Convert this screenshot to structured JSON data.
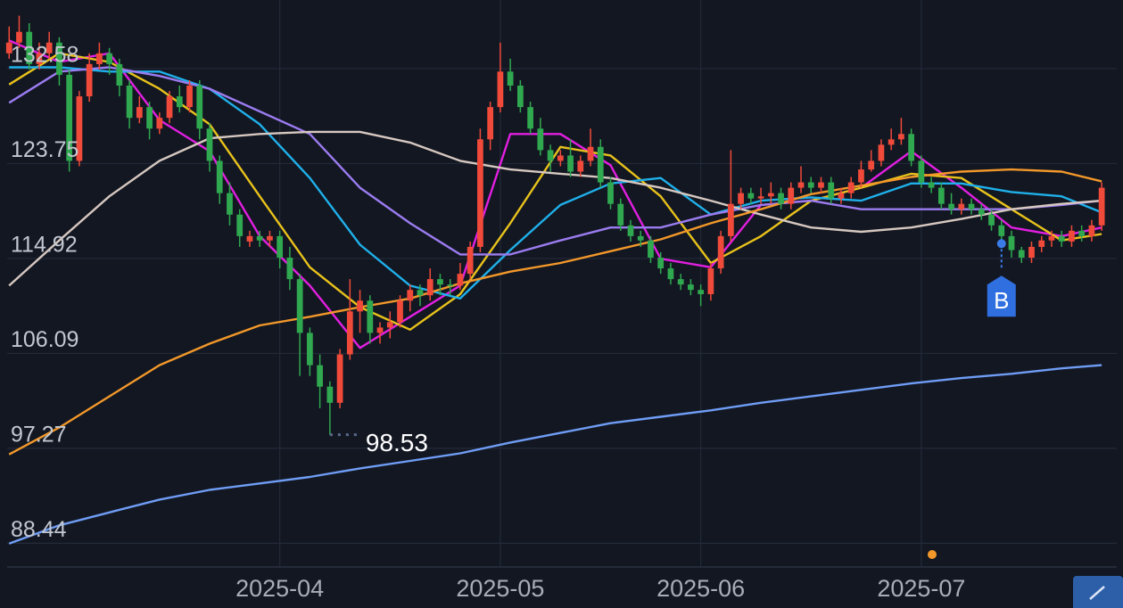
{
  "chart_data": {
    "type": "candlestick",
    "up_color": "#f04a3a",
    "down_color": "#2fa84f",
    "ylim": [
      86.23,
      138.96
    ],
    "yticks": [
      88.44,
      97.27,
      106.09,
      114.92,
      123.75,
      132.58
    ],
    "xlim": [
      -0.2,
      110.5
    ],
    "xticks": [
      {
        "value": 27,
        "label": "2025-04"
      },
      {
        "value": 49,
        "label": "2025-05"
      },
      {
        "value": 69,
        "label": "2025-06"
      },
      {
        "value": 91,
        "label": "2025-07"
      }
    ],
    "grid": true,
    "min_low": 98.53,
    "ohlc": [
      [
        134,
        136.5,
        133.5,
        135
      ],
      [
        135,
        137.5,
        134.5,
        136
      ],
      [
        136,
        136.8,
        132.5,
        133
      ],
      [
        133,
        135,
        132.5,
        134
      ],
      [
        134,
        136,
        133.5,
        135
      ],
      [
        135,
        135.5,
        131,
        132
      ],
      [
        132,
        132.5,
        123,
        124
      ],
      [
        124,
        130.5,
        123.5,
        130
      ],
      [
        130,
        134,
        129.5,
        133
      ],
      [
        133,
        135,
        132.5,
        134
      ],
      [
        134,
        134.5,
        132,
        133
      ],
      [
        133,
        133.5,
        130,
        131
      ],
      [
        131,
        131.5,
        127,
        128
      ],
      [
        128,
        130,
        127.5,
        129
      ],
      [
        129,
        129.5,
        126,
        127
      ],
      [
        127,
        128.5,
        126.5,
        128
      ],
      [
        128,
        130.5,
        127.5,
        130
      ],
      [
        130,
        131,
        128.5,
        129
      ],
      [
        129,
        131.5,
        128.5,
        131
      ],
      [
        131,
        131.5,
        126,
        127
      ],
      [
        127,
        127.5,
        123,
        124
      ],
      [
        124,
        124.5,
        120,
        121
      ],
      [
        121,
        122,
        118,
        119
      ],
      [
        119,
        119.5,
        116,
        117
      ],
      [
        116.5,
        117.5,
        116,
        117
      ],
      [
        117,
        117.5,
        116,
        116.6
      ],
      [
        116.6,
        117.5,
        116,
        117
      ],
      [
        117,
        117.5,
        114,
        115
      ],
      [
        115,
        116,
        112,
        113
      ],
      [
        113,
        113.5,
        104,
        108
      ],
      [
        108,
        108.5,
        104,
        105
      ],
      [
        105,
        106,
        101,
        103
      ],
      [
        103,
        103.5,
        98.53,
        101.5
      ],
      [
        101.5,
        106.5,
        101,
        106
      ],
      [
        106,
        113,
        105.5,
        110
      ],
      [
        110,
        112,
        108,
        111
      ],
      [
        111,
        111.5,
        107,
        108
      ],
      [
        108,
        109,
        107,
        108.5
      ],
      [
        108.5,
        110,
        107.5,
        109
      ],
      [
        109,
        111.5,
        108.5,
        111
      ],
      [
        111,
        112.5,
        110,
        112
      ],
      [
        112,
        112.5,
        110.5,
        111.5
      ],
      [
        111.5,
        114,
        111,
        113
      ],
      [
        113,
        113.5,
        111.5,
        112.5
      ],
      [
        112.5,
        113,
        111.5,
        112.4
      ],
      [
        112.4,
        114.5,
        112,
        113.5
      ],
      [
        113.5,
        116.5,
        113,
        116
      ],
      [
        116,
        127,
        115.5,
        126
      ],
      [
        126,
        129.5,
        125,
        129
      ],
      [
        129,
        135,
        128.5,
        132.3
      ],
      [
        132.3,
        133.5,
        130.5,
        131
      ],
      [
        131,
        131.5,
        128.5,
        129
      ],
      [
        129,
        129.5,
        126.5,
        127
      ],
      [
        127,
        128,
        124.5,
        125
      ],
      [
        125,
        125.5,
        123,
        124
      ],
      [
        124,
        125,
        123.5,
        124.5
      ],
      [
        124.5,
        126,
        122.5,
        123
      ],
      [
        123,
        124.5,
        122.5,
        124
      ],
      [
        124,
        127,
        123.5,
        125.3
      ],
      [
        125.3,
        126,
        121.5,
        122
      ],
      [
        122,
        122.5,
        119.5,
        120
      ],
      [
        120,
        120.5,
        117.5,
        118
      ],
      [
        118,
        118.5,
        116.5,
        117
      ],
      [
        117,
        117.5,
        116,
        116.6
      ],
      [
        116.6,
        117,
        114.5,
        115
      ],
      [
        115,
        115.5,
        113.5,
        114
      ],
      [
        114,
        114.5,
        112.5,
        113
      ],
      [
        113,
        113.5,
        112,
        112.5
      ],
      [
        112.5,
        113,
        111.5,
        112
      ],
      [
        112,
        112.5,
        110.5,
        111.6
      ],
      [
        111.6,
        114.5,
        111,
        114
      ],
      [
        114,
        117.5,
        113.5,
        117
      ],
      [
        117,
        125,
        116.5,
        120
      ],
      [
        120,
        121.5,
        119.5,
        121
      ],
      [
        121,
        121.5,
        120,
        120.5
      ],
      [
        120.5,
        121.5,
        120,
        120.7
      ],
      [
        120.7,
        122,
        120,
        121
      ],
      [
        121,
        121.5,
        119.5,
        120
      ],
      [
        120,
        122,
        119.5,
        121.5
      ],
      [
        121.5,
        123.5,
        121,
        122
      ],
      [
        122,
        122.5,
        121,
        121.5
      ],
      [
        121.5,
        122.5,
        121,
        122
      ],
      [
        122,
        122.5,
        120,
        120.5
      ],
      [
        120.5,
        121.5,
        120,
        121
      ],
      [
        121,
        122.5,
        120.5,
        122
      ],
      [
        122,
        124,
        121.5,
        123.2
      ],
      [
        123.2,
        125,
        123,
        124
      ],
      [
        124,
        126,
        123.5,
        125.5
      ],
      [
        125.5,
        127,
        125,
        126
      ],
      [
        126,
        128,
        125.5,
        126.5
      ],
      [
        126.5,
        127,
        123.5,
        124
      ],
      [
        124,
        124.5,
        121.5,
        122
      ],
      [
        122,
        122.5,
        121,
        121.5
      ],
      [
        121.5,
        122,
        119.5,
        120
      ],
      [
        120,
        121,
        119,
        119.5
      ],
      [
        119.5,
        120.5,
        119,
        120
      ],
      [
        120,
        120.5,
        119,
        119.5
      ],
      [
        119.5,
        120,
        118.5,
        119
      ],
      [
        119,
        119.5,
        117.5,
        118
      ],
      [
        118,
        118.5,
        116.5,
        117
      ],
      [
        117,
        117.5,
        115,
        115.7
      ],
      [
        115.7,
        116,
        114.5,
        115
      ],
      [
        115,
        116.5,
        114.5,
        116
      ],
      [
        116,
        117,
        115.5,
        116.6
      ],
      [
        116.6,
        117.5,
        116,
        117
      ],
      [
        117,
        117.5,
        116,
        116.5
      ],
      [
        116.5,
        118,
        116,
        117.5
      ],
      [
        117.5,
        118,
        116.5,
        117
      ],
      [
        117,
        118.5,
        116.5,
        118
      ],
      [
        118,
        122,
        117.5,
        121.5
      ]
    ],
    "x": [
      0,
      5,
      10,
      15,
      20,
      25,
      30,
      35,
      40,
      45,
      50,
      55,
      60,
      65,
      70,
      75,
      80,
      85,
      90,
      95,
      100,
      105,
      109
    ],
    "series": [
      {
        "color": "#e11fe0",
        "values": [
          135.2,
          133.2,
          134,
          127.8,
          124.9,
          117,
          112.4,
          106.6,
          109.5,
          112.4,
          126.5,
          126.5,
          123.6,
          114.9,
          114.1,
          119.9,
          120.3,
          121.5,
          124.9,
          121.5,
          117.8,
          117,
          117.8
        ]
      },
      {
        "color": "#e8c21b",
        "values": [
          131.1,
          134,
          133.2,
          130.7,
          127.4,
          120.7,
          114.1,
          110.4,
          108.3,
          111.6,
          118.2,
          125.3,
          124.5,
          120.7,
          114.5,
          117,
          120.3,
          121.5,
          122.8,
          122.4,
          119.5,
          116.6,
          117.2
        ]
      },
      {
        "color": "#1fb0ea",
        "values": [
          132.7,
          132.7,
          132.3,
          132.3,
          130.7,
          127.4,
          122.4,
          116.2,
          112.4,
          111.2,
          115.7,
          119.9,
          121.9,
          122.4,
          119,
          120.3,
          120.6,
          120.3,
          121.9,
          121.9,
          121.1,
          120.7,
          119.2
        ]
      },
      {
        "color": "#9b7cf0",
        "values": [
          129.4,
          132.3,
          132.7,
          131.9,
          130.7,
          128.6,
          126.5,
          121.5,
          118.2,
          115.3,
          115.3,
          116.6,
          117.8,
          117.8,
          119,
          119.9,
          120.3,
          119.5,
          119.5,
          119.5,
          119.5,
          119.9,
          120.3
        ]
      },
      {
        "color": "#d6c8c0",
        "values": [
          112.4,
          116.6,
          120.7,
          124,
          126.1,
          126.5,
          126.7,
          126.7,
          125.7,
          124,
          123.2,
          122.8,
          122.4,
          121.5,
          120.3,
          119,
          117.8,
          117.4,
          117.8,
          118.6,
          119.5,
          120,
          120.3
        ]
      },
      {
        "color": "#f2982a",
        "values": [
          96.7,
          99.2,
          102.1,
          105,
          107,
          108.7,
          109.5,
          110.4,
          111.2,
          112.6,
          113.7,
          114.5,
          115.6,
          116.7,
          118.2,
          119.5,
          120.9,
          121.7,
          122.5,
          123,
          123.2,
          123,
          122.1
        ]
      },
      {
        "color": "#6f9df5",
        "values": [
          88.4,
          90.1,
          91.3,
          92.5,
          93.4,
          94,
          94.6,
          95.4,
          96.1,
          96.8,
          97.8,
          98.7,
          99.6,
          100.2,
          100.8,
          101.5,
          102.1,
          102.7,
          103.3,
          103.8,
          104.2,
          104.7,
          105
        ]
      }
    ],
    "signals": [
      {
        "label": "B",
        "x": 99,
        "value": 116.3
      }
    ]
  }
}
